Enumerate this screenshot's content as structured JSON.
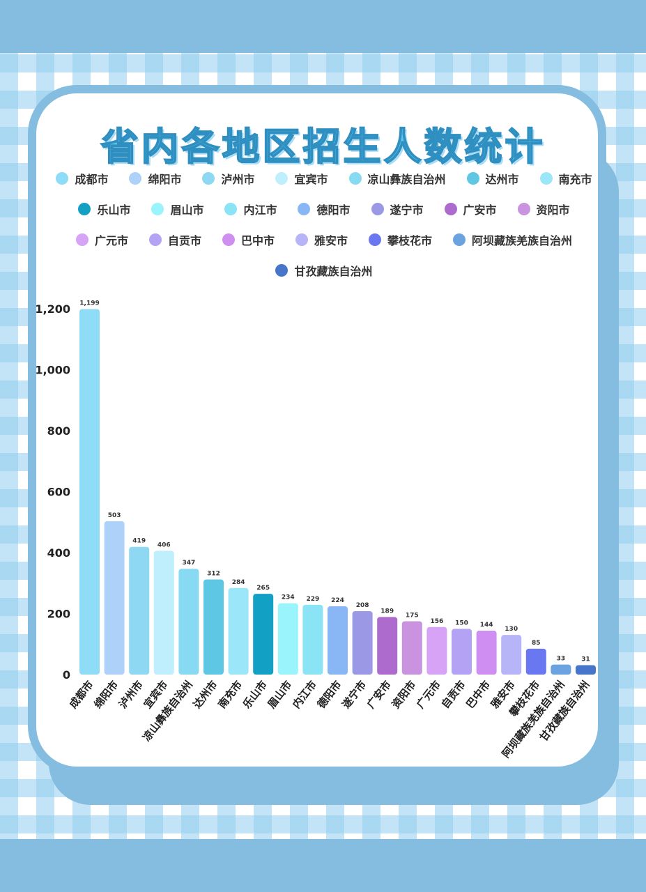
{
  "title": "省内各地区招生人数统计",
  "chart_data": {
    "type": "bar",
    "title": "省内各地区招生人数统计",
    "categories": [
      "成都市",
      "绵阳市",
      "泸州市",
      "宜宾市",
      "凉山彝族自治州",
      "达州市",
      "南充市",
      "乐山市",
      "眉山市",
      "内江市",
      "德阳市",
      "遂宁市",
      "广安市",
      "资阳市",
      "广元市",
      "自贡市",
      "巴中市",
      "雅安市",
      "攀枝花市",
      "阿坝藏族羌族自治州",
      "甘孜藏族自治州"
    ],
    "values": [
      1199,
      503,
      419,
      406,
      347,
      312,
      284,
      265,
      234,
      229,
      224,
      208,
      189,
      175,
      156,
      150,
      144,
      130,
      85,
      33,
      31
    ],
    "value_labels": [
      "1,199",
      "503",
      "419",
      "406",
      "347",
      "312",
      "284",
      "265",
      "234",
      "229",
      "224",
      "208",
      "189",
      "175",
      "156",
      "150",
      "144",
      "130",
      "85",
      "33",
      "31"
    ],
    "colors": [
      "#8fdcf6",
      "#aed1fa",
      "#8ed8f3",
      "#bfeefd",
      "#88daf3",
      "#5ec8e4",
      "#9ce6f9",
      "#12a0c5",
      "#9af4fc",
      "#8ae4f6",
      "#89b6f4",
      "#9b98e6",
      "#ad6ccd",
      "#c993df",
      "#d6a3f7",
      "#b4a2f5",
      "#cf8ef2",
      "#b7b4f7",
      "#6978f1",
      "#6aa3e0",
      "#4675c9"
    ],
    "yticks": [
      0,
      200,
      400,
      600,
      800,
      1000,
      1200
    ],
    "ytick_labels": [
      "0",
      "200",
      "400",
      "600",
      "800",
      "1,000",
      "1,200"
    ],
    "ylim": [
      0,
      1200
    ],
    "xlabel": "",
    "ylabel": "",
    "grid": false,
    "legend": "top"
  }
}
